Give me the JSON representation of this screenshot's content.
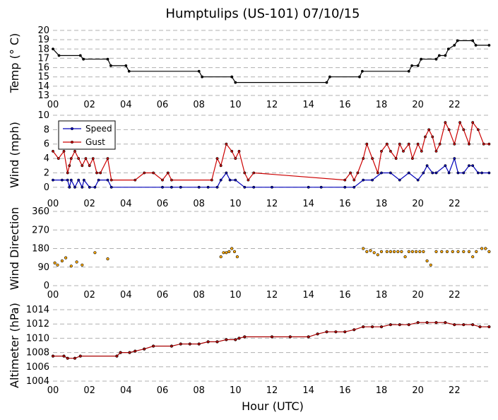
{
  "title": "Humptulips (US-101) 07/10/15",
  "xlabel": "Hour (UTC)",
  "x_tick_labels": [
    "00",
    "02",
    "04",
    "06",
    "08",
    "10",
    "12",
    "14",
    "16",
    "18",
    "20",
    "22"
  ],
  "colors": {
    "temp": "#000000",
    "speed": "#0000bb",
    "gust": "#cc0000",
    "direction_fill": "#ffaa00",
    "direction_line": "#ffaa00",
    "altimeter_fill": "#aa0000",
    "altimeter_line": "#aa0000"
  },
  "chart_data": [
    {
      "type": "line",
      "ylabel": "Temp ($^\\circ$C)",
      "ylabel_display": "Temp (° C)",
      "ylim": [
        13,
        20
      ],
      "yticks": [
        13,
        14,
        15,
        16,
        17,
        18,
        19,
        20
      ],
      "grid": true,
      "xlim": [
        0,
        24
      ],
      "series": [
        {
          "x_hours": [
            0,
            0.33,
            1.5,
            1.67,
            3.0,
            3.17,
            4.0,
            4.17,
            8.0,
            8.17,
            9.8,
            10.0,
            15.0,
            15.17,
            16.8,
            16.95,
            19.5,
            19.67,
            20.0,
            20.17,
            21.0,
            21.17,
            21.5,
            21.67,
            22.0,
            22.17,
            23.0,
            23.17,
            23.9
          ],
          "y": [
            18.0,
            17.3,
            17.3,
            16.9,
            16.9,
            16.2,
            16.2,
            15.6,
            15.6,
            15.0,
            15.0,
            14.4,
            14.4,
            15.0,
            15.0,
            15.6,
            15.6,
            16.2,
            16.2,
            16.9,
            16.9,
            17.3,
            17.3,
            18.0,
            18.4,
            18.9,
            18.9,
            18.4,
            18.4
          ]
        }
      ]
    },
    {
      "type": "line",
      "ylabel": "Wind (mph)",
      "ylim": [
        -1,
        10
      ],
      "yticks": [
        0,
        2,
        4,
        6,
        8,
        10
      ],
      "grid": true,
      "legend": {
        "placement": "top-left",
        "entries": [
          "Speed",
          "Gust"
        ]
      },
      "series": [
        {
          "name": "Speed",
          "x_hours": [
            0,
            0.5,
            0.8,
            0.9,
            1.0,
            1.2,
            1.4,
            1.6,
            1.7,
            2.0,
            2.3,
            2.5,
            3.0,
            3.2,
            6.0,
            6.5,
            7.0,
            8.0,
            8.5,
            9.0,
            9.2,
            9.5,
            9.7,
            10.0,
            10.5,
            11.0,
            12.0,
            14.0,
            14.7,
            16.0,
            16.5,
            17.0,
            17.5,
            18.0,
            18.5,
            19.0,
            19.5,
            20.0,
            20.3,
            20.5,
            20.8,
            21.0,
            21.5,
            21.7,
            22.0,
            22.2,
            22.5,
            22.8,
            23.0,
            23.3,
            23.5,
            23.9
          ],
          "y": [
            1,
            1,
            1,
            0,
            1,
            0,
            1,
            0,
            1,
            0,
            0,
            1,
            1,
            0,
            0,
            0,
            0,
            0,
            0,
            0,
            1,
            2,
            1,
            1,
            0,
            0,
            0,
            0,
            0,
            0,
            0,
            1,
            1,
            2,
            2,
            1,
            2,
            1,
            2,
            3,
            2,
            2,
            3,
            2,
            4,
            2,
            2,
            3,
            3,
            2,
            2,
            2
          ]
        },
        {
          "name": "Gust",
          "x_hours": [
            0,
            0.3,
            0.6,
            0.8,
            0.9,
            1.0,
            1.2,
            1.4,
            1.6,
            1.8,
            2.0,
            2.2,
            2.4,
            2.6,
            3.0,
            3.2,
            4.5,
            5.0,
            5.5,
            6.0,
            6.3,
            6.5,
            8.7,
            9.0,
            9.2,
            9.5,
            9.8,
            10.0,
            10.2,
            10.5,
            10.7,
            11.0,
            16.0,
            16.3,
            16.5,
            16.7,
            17.0,
            17.2,
            17.5,
            17.8,
            18.0,
            18.3,
            18.5,
            18.8,
            19.0,
            19.2,
            19.5,
            19.7,
            20.0,
            20.2,
            20.4,
            20.6,
            20.8,
            21.0,
            21.2,
            21.5,
            21.7,
            22.0,
            22.3,
            22.5,
            22.8,
            23.0,
            23.3,
            23.6,
            23.9
          ],
          "y": [
            5,
            4,
            5,
            2,
            3,
            4,
            5,
            4,
            3,
            4,
            3,
            4,
            2,
            2,
            4,
            1,
            1,
            2,
            2,
            1,
            2,
            1,
            1,
            4,
            3,
            6,
            5,
            4,
            5,
            2,
            1,
            2,
            1,
            2,
            1,
            2,
            4,
            6,
            4,
            2,
            5,
            6,
            5,
            4,
            6,
            5,
            6,
            4,
            6,
            5,
            7,
            8,
            7,
            5,
            6,
            9,
            8,
            6,
            9,
            8,
            6,
            9,
            8,
            6,
            6
          ]
        }
      ]
    },
    {
      "type": "scatter",
      "ylabel": "Wind Direction",
      "ylim": [
        0,
        360
      ],
      "yticks": [
        0,
        90,
        180,
        270,
        360
      ],
      "grid": true,
      "series": [
        {
          "x_hours": [
            0.1,
            0.25,
            0.5,
            0.7,
            1.0,
            1.3,
            1.6,
            2.3,
            3.0,
            9.2,
            9.35,
            9.5,
            9.65,
            9.8,
            9.95,
            10.1,
            17.0,
            17.2,
            17.4,
            17.6,
            17.8,
            18.0,
            18.3,
            18.5,
            18.7,
            18.9,
            19.1,
            19.3,
            19.5,
            19.7,
            19.9,
            20.1,
            20.3,
            20.5,
            20.7,
            21.0,
            21.3,
            21.6,
            21.9,
            22.2,
            22.5,
            22.8,
            23.0,
            23.2,
            23.5,
            23.7,
            23.9
          ],
          "y": [
            110,
            100,
            120,
            135,
            95,
            115,
            100,
            160,
            130,
            140,
            160,
            160,
            165,
            180,
            165,
            140,
            180,
            165,
            170,
            160,
            150,
            165,
            165,
            165,
            165,
            165,
            165,
            140,
            165,
            165,
            165,
            165,
            165,
            120,
            100,
            165,
            165,
            165,
            165,
            165,
            165,
            165,
            140,
            165,
            180,
            180,
            165
          ]
        }
      ]
    },
    {
      "type": "line",
      "ylabel": "Altimeter (hPa)",
      "ylim": [
        1004,
        1014
      ],
      "yticks": [
        1004,
        1006,
        1008,
        1010,
        1012,
        1014
      ],
      "grid": true,
      "series": [
        {
          "x_hours": [
            0,
            0.6,
            0.8,
            1.2,
            1.5,
            3.5,
            3.7,
            4.2,
            4.5,
            5.0,
            5.5,
            6.5,
            7.0,
            7.5,
            8.0,
            8.5,
            9.0,
            9.5,
            10.0,
            10.2,
            10.5,
            12.0,
            13.0,
            14.0,
            14.5,
            15.0,
            15.5,
            16.0,
            16.5,
            17.0,
            17.5,
            18.0,
            18.5,
            19.0,
            19.5,
            20.0,
            20.5,
            21.0,
            21.5,
            22.0,
            22.5,
            23.0,
            23.4,
            23.9
          ],
          "y": [
            1007.5,
            1007.5,
            1007.2,
            1007.2,
            1007.5,
            1007.5,
            1008.0,
            1008.0,
            1008.2,
            1008.5,
            1008.9,
            1008.9,
            1009.2,
            1009.2,
            1009.2,
            1009.5,
            1009.5,
            1009.8,
            1009.8,
            1010.0,
            1010.2,
            1010.2,
            1010.2,
            1010.2,
            1010.6,
            1010.9,
            1010.9,
            1010.9,
            1011.2,
            1011.6,
            1011.6,
            1011.6,
            1011.9,
            1011.9,
            1011.9,
            1012.2,
            1012.2,
            1012.2,
            1012.2,
            1011.9,
            1011.9,
            1011.9,
            1011.6,
            1011.6
          ]
        }
      ]
    }
  ]
}
